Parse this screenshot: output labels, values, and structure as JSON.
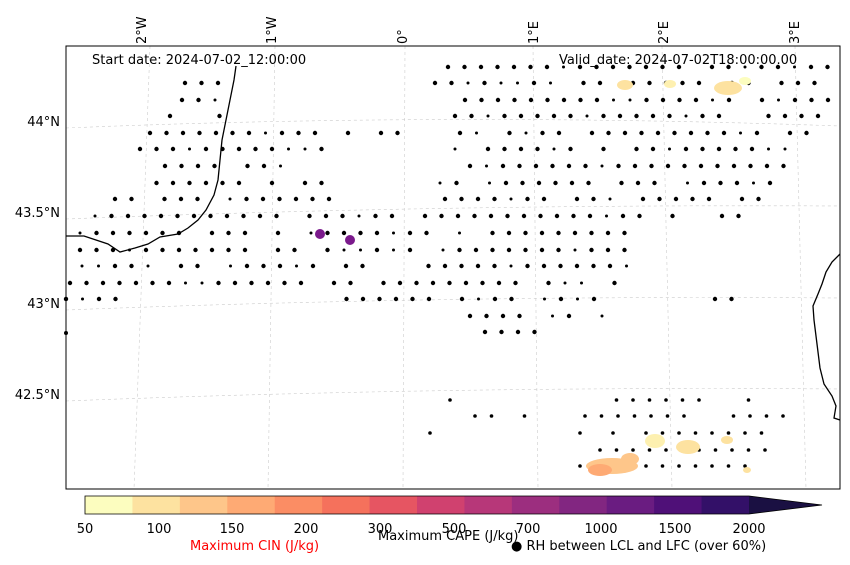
{
  "header": {
    "start_date": "Start date: 2024-07-02_12:00:00",
    "valid_date": "Valid_date: 2024-07-02T18:00:00.00"
  },
  "axes": {
    "lon_labels": [
      "2°W",
      "1°W",
      "0°",
      "1°E",
      "2°E",
      "3°E"
    ],
    "lat_labels": [
      "44°N",
      "43.5°N",
      "43°N",
      "42.5°N"
    ]
  },
  "colorbar": {
    "ticks": [
      "50",
      "100",
      "150",
      "200",
      "300",
      "500",
      "700",
      "1000",
      "1500",
      "2000"
    ],
    "colors": [
      "#fcfdbf",
      "#fde2a0",
      "#fec68a",
      "#feaa74",
      "#fb8d64",
      "#f5715c",
      "#e65562",
      "#d0416f",
      "#b73779",
      "#9c2e7f",
      "#822681",
      "#6a1c81",
      "#4f1078",
      "#331068",
      "#1a1042"
    ],
    "cape_label": "Maximum CAPE (J/kg)",
    "cin_label": "Maximum CIN (J/kg)",
    "cin_color": "#ff0000",
    "rh_label": "● RH between LCL and LFC (over 60%)"
  }
}
